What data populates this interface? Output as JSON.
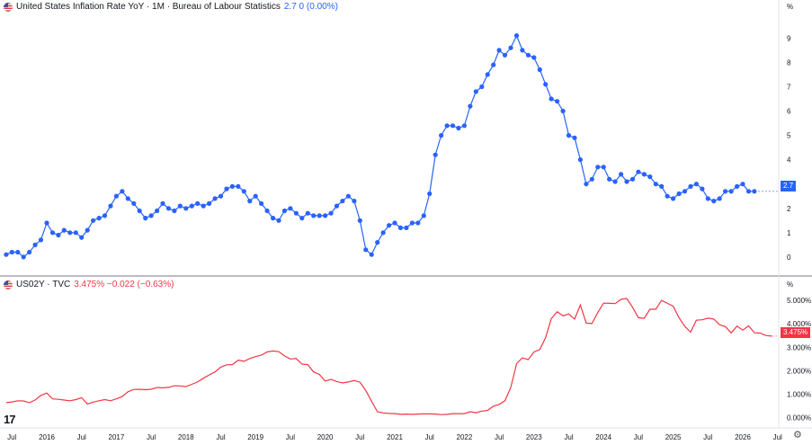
{
  "header_top": {
    "title": "United States Inflation Rate YoY · 1M · Bureau of Labour Statistics",
    "values": "2.7 0 (0.00%)"
  },
  "header_bottom": {
    "title": "US02Y · TVC",
    "values": "3.475% −0.022 (−0.63%)"
  },
  "axis_unit_top": "%",
  "axis_unit_bottom": "%",
  "last_value_top": "2.7",
  "last_value_bottom": "3.475%",
  "colors": {
    "cpi": "#2962ff",
    "yield": "#f23645"
  },
  "icons": [
    "us-flag-icon",
    "tradingview-logo-icon",
    "settings-gear-icon"
  ],
  "logo_text": "17",
  "chart_data": [
    {
      "type": "line",
      "title": "United States Inflation Rate YoY",
      "markers": true,
      "ylim": [
        -0.3,
        9.9
      ],
      "yticks": [
        "0",
        "1",
        "2",
        "3",
        "4",
        "5",
        "6",
        "7",
        "8",
        "9"
      ],
      "series": [
        {
          "name": "United States Inflation Rate YoY",
          "x_start": "2015-06",
          "frequency": "monthly",
          "values": [
            0.1,
            0.2,
            0.2,
            0.0,
            0.2,
            0.5,
            0.7,
            1.4,
            1.0,
            0.9,
            1.1,
            1.0,
            1.0,
            0.8,
            1.1,
            1.5,
            1.6,
            1.7,
            2.1,
            2.5,
            2.7,
            2.4,
            2.2,
            1.9,
            1.6,
            1.7,
            1.9,
            2.2,
            2.0,
            1.9,
            2.1,
            2.0,
            2.1,
            2.2,
            2.1,
            2.2,
            2.4,
            2.5,
            2.8,
            2.9,
            2.9,
            2.7,
            2.3,
            2.5,
            2.2,
            1.9,
            1.6,
            1.5,
            1.9,
            2.0,
            1.8,
            1.6,
            1.8,
            1.7,
            1.7,
            1.7,
            1.8,
            2.1,
            2.3,
            2.5,
            2.3,
            1.5,
            0.3,
            0.1,
            0.6,
            1.0,
            1.3,
            1.4,
            1.2,
            1.2,
            1.4,
            1.4,
            1.7,
            2.6,
            4.2,
            5.0,
            5.4,
            5.4,
            5.3,
            5.4,
            6.2,
            6.8,
            7.0,
            7.5,
            7.9,
            8.5,
            8.3,
            8.6,
            9.1,
            8.5,
            8.3,
            8.2,
            7.7,
            7.1,
            6.5,
            6.4,
            6.0,
            5.0,
            4.9,
            4.0,
            3.0,
            3.2,
            3.7,
            3.7,
            3.2,
            3.1,
            3.4,
            3.1,
            3.2,
            3.5,
            3.4,
            3.3,
            3.0,
            2.9,
            2.5,
            2.4,
            2.6,
            2.7,
            2.9,
            3.0,
            2.8,
            2.4,
            2.3,
            2.4,
            2.7,
            2.7,
            2.9,
            3.0,
            2.7,
            2.7
          ]
        }
      ]
    },
    {
      "type": "line",
      "title": "US02Y",
      "ylim": [
        -0.4,
        5.5
      ],
      "yticks": [
        "0.000%",
        "1.000%",
        "2.000%",
        "3.000%",
        "4.000%",
        "5.000%"
      ],
      "series": [
        {
          "name": "US02Y",
          "x_start": "2015-06",
          "frequency": "monthly",
          "values": [
            0.64,
            0.67,
            0.72,
            0.71,
            0.64,
            0.75,
            0.95,
            1.05,
            0.8,
            0.78,
            0.75,
            0.72,
            0.77,
            0.85,
            0.58,
            0.66,
            0.72,
            0.77,
            0.72,
            0.8,
            0.9,
            1.1,
            1.2,
            1.21,
            1.19,
            1.21,
            1.28,
            1.27,
            1.29,
            1.36,
            1.35,
            1.32,
            1.42,
            1.52,
            1.68,
            1.82,
            1.95,
            2.15,
            2.25,
            2.26,
            2.45,
            2.4,
            2.52,
            2.6,
            2.66,
            2.8,
            2.84,
            2.81,
            2.63,
            2.5,
            2.52,
            2.28,
            2.26,
            1.95,
            1.84,
            1.56,
            1.63,
            1.54,
            1.48,
            1.52,
            1.58,
            1.51,
            1.15,
            0.7,
            0.25,
            0.2,
            0.18,
            0.17,
            0.14,
            0.15,
            0.14,
            0.15,
            0.16,
            0.16,
            0.15,
            0.13,
            0.14,
            0.17,
            0.17,
            0.17,
            0.25,
            0.21,
            0.28,
            0.31,
            0.49,
            0.56,
            0.72,
            1.28,
            2.3,
            2.55,
            2.47,
            2.8,
            2.9,
            3.41,
            4.22,
            4.51,
            4.34,
            4.42,
            4.2,
            4.8,
            4.03,
            4.01,
            4.48,
            4.88,
            4.87,
            4.86,
            5.04,
            5.08,
            4.7,
            4.26,
            4.23,
            4.62,
            4.62,
            5.0,
            4.87,
            4.75,
            4.26,
            3.89,
            3.64,
            4.15,
            4.17,
            4.24,
            4.2,
            3.96,
            3.88,
            3.61,
            3.9,
            3.73,
            3.91,
            3.62,
            3.6,
            3.5,
            3.475
          ]
        }
      ]
    }
  ],
  "x_axis": {
    "ticks": [
      {
        "label": "Jul",
        "date": "2015-07"
      },
      {
        "label": "2016",
        "date": "2016-01"
      },
      {
        "label": "Jul",
        "date": "2016-07"
      },
      {
        "label": "2017",
        "date": "2017-01"
      },
      {
        "label": "Jul",
        "date": "2017-07"
      },
      {
        "label": "2018",
        "date": "2018-01"
      },
      {
        "label": "Jul",
        "date": "2018-07"
      },
      {
        "label": "2019",
        "date": "2019-01"
      },
      {
        "label": "Jul",
        "date": "2019-07"
      },
      {
        "label": "2020",
        "date": "2020-01"
      },
      {
        "label": "Jul",
        "date": "2020-07"
      },
      {
        "label": "2021",
        "date": "2021-01"
      },
      {
        "label": "Jul",
        "date": "2021-07"
      },
      {
        "label": "2022",
        "date": "2022-01"
      },
      {
        "label": "Jul",
        "date": "2022-07"
      },
      {
        "label": "2023",
        "date": "2023-01"
      },
      {
        "label": "Jul",
        "date": "2023-07"
      },
      {
        "label": "2024",
        "date": "2024-01"
      },
      {
        "label": "Jul",
        "date": "2024-07"
      },
      {
        "label": "2025",
        "date": "2025-01"
      },
      {
        "label": "Jul",
        "date": "2025-07"
      },
      {
        "label": "2026",
        "date": "2026-01"
      },
      {
        "label": "Jul",
        "date": "2026-07"
      }
    ]
  }
}
